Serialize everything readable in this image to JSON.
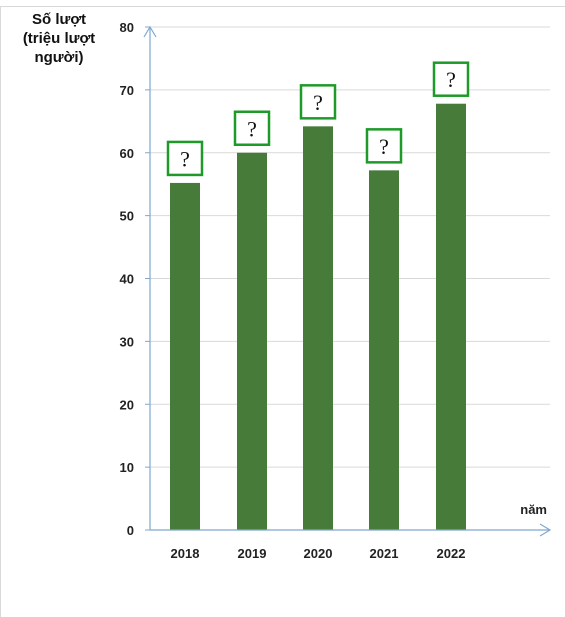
{
  "chart_data": {
    "type": "bar",
    "ylabel_lines": [
      "Số lượt",
      "(triệu lượt",
      "người)"
    ],
    "xlabel": "năm",
    "categories": [
      "2018",
      "2019",
      "2020",
      "2021",
      "2022"
    ],
    "values": [
      55.2,
      60,
      64.2,
      57.2,
      67.8
    ],
    "data_labels": [
      "?",
      "?",
      "?",
      "?",
      "?"
    ],
    "ylim": [
      0,
      80
    ],
    "yticks": [
      "0",
      "10",
      "20",
      "30",
      "40",
      "50",
      "60",
      "70",
      "80"
    ],
    "grid": true,
    "colors": {
      "bar": "#467b3a",
      "label_box": "#1e9a28",
      "axis": "#7fa8d1",
      "grid": "#d9d9d9"
    }
  }
}
